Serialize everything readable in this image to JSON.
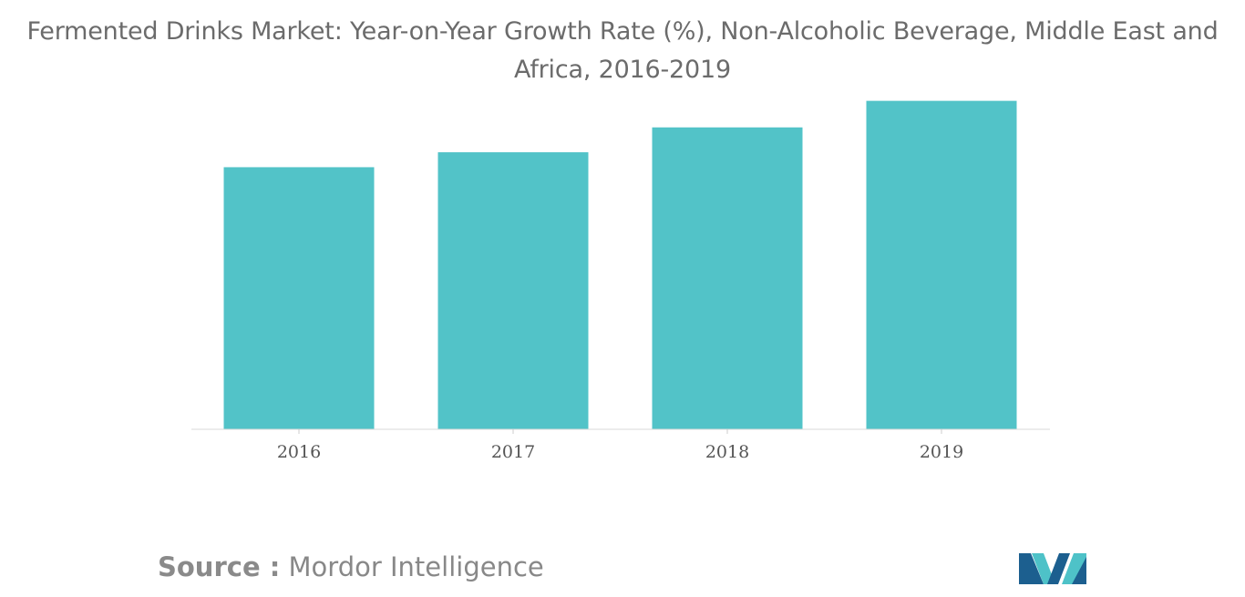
{
  "chart_data": {
    "type": "bar",
    "title": "Fermented Drinks Market: Year-on-Year Growth Rate (%), Non-Alcoholic Beverage, Middle East and Africa, 2016-2019",
    "categories": [
      "2016",
      "2017",
      "2018",
      "2019"
    ],
    "values": [
      7.9,
      8.35,
      9.1,
      9.9
    ],
    "xlabel": "",
    "ylabel": "",
    "ylim": [
      0,
      10
    ],
    "grid": false,
    "legend": "none",
    "colors": {
      "bar": "#52c3c8"
    }
  },
  "source": {
    "prefix": "Source :",
    "name": "Mordor Intelligence"
  },
  "logo": {
    "icon": "mordor-intelligence-logo",
    "colors": [
      "#1c5f8f",
      "#4ec2c8"
    ]
  }
}
